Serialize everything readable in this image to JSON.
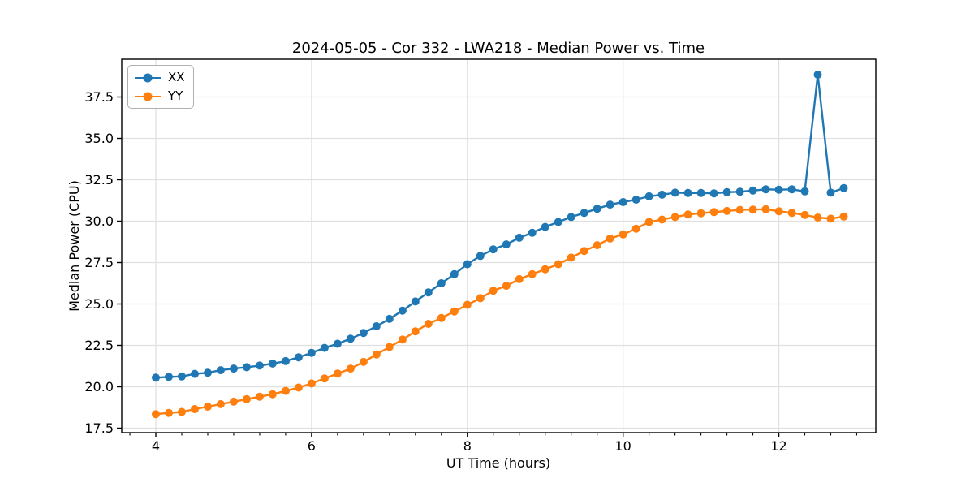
{
  "chart_data": {
    "type": "line",
    "title": "2024-05-05 - Cor 332 - LWA218 - Median Power vs. Time",
    "xlabel": "UT Time (hours)",
    "ylabel": "Median Power (CPU)",
    "xlim": [
      3.562,
      13.245
    ],
    "ylim": [
      17.23,
      39.78
    ],
    "x_ticks": [
      4,
      6,
      8,
      10,
      12
    ],
    "x_tick_labels": [
      "4",
      "6",
      "8",
      "10",
      "12"
    ],
    "x_minor_step": 0.33333,
    "y_ticks": [
      17.5,
      20.0,
      22.5,
      25.0,
      27.5,
      30.0,
      32.5,
      35.0,
      37.5
    ],
    "y_tick_labels": [
      "17.5",
      "20.0",
      "22.5",
      "25.0",
      "27.5",
      "30.0",
      "32.5",
      "35.0",
      "37.5"
    ],
    "grid": true,
    "legend_position": "upper left",
    "marker": "circle",
    "x": [
      4.0,
      4.167,
      4.333,
      4.5,
      4.667,
      4.833,
      5.0,
      5.167,
      5.333,
      5.5,
      5.667,
      5.833,
      6.0,
      6.167,
      6.333,
      6.5,
      6.667,
      6.833,
      7.0,
      7.167,
      7.333,
      7.5,
      7.667,
      7.833,
      8.0,
      8.167,
      8.333,
      8.5,
      8.667,
      8.833,
      9.0,
      9.167,
      9.333,
      9.5,
      9.667,
      9.833,
      10.0,
      10.167,
      10.333,
      10.5,
      10.667,
      10.833,
      11.0,
      11.167,
      11.333,
      11.5,
      11.667,
      11.833,
      12.0,
      12.167,
      12.333,
      12.5,
      12.667,
      12.833
    ],
    "series": [
      {
        "name": "XX",
        "color": "#1f77b4",
        "values": [
          20.55,
          20.6,
          20.62,
          20.78,
          20.85,
          21.0,
          21.1,
          21.18,
          21.28,
          21.4,
          21.55,
          21.78,
          22.05,
          22.35,
          22.6,
          22.9,
          23.25,
          23.65,
          24.1,
          24.6,
          25.15,
          25.7,
          26.25,
          26.8,
          27.4,
          27.9,
          28.3,
          28.6,
          29.0,
          29.3,
          29.65,
          29.95,
          30.25,
          30.5,
          30.75,
          31.0,
          31.15,
          31.3,
          31.5,
          31.6,
          31.72,
          31.7,
          31.7,
          31.68,
          31.75,
          31.78,
          31.85,
          31.92,
          31.9,
          31.92,
          31.8,
          38.85,
          31.72,
          32.0
        ]
      },
      {
        "name": "YY",
        "color": "#ff7f0e",
        "values": [
          18.35,
          18.42,
          18.48,
          18.65,
          18.8,
          18.95,
          19.1,
          19.25,
          19.4,
          19.55,
          19.75,
          19.95,
          20.2,
          20.5,
          20.8,
          21.1,
          21.5,
          21.95,
          22.4,
          22.85,
          23.35,
          23.8,
          24.15,
          24.55,
          24.95,
          25.35,
          25.8,
          26.1,
          26.5,
          26.8,
          27.1,
          27.4,
          27.8,
          28.2,
          28.55,
          28.95,
          29.2,
          29.55,
          29.95,
          30.1,
          30.25,
          30.4,
          30.48,
          30.55,
          30.62,
          30.68,
          30.7,
          30.72,
          30.6,
          30.5,
          30.38,
          30.22,
          30.15,
          30.28
        ]
      }
    ],
    "colors": {
      "grid": "#e0e0e0",
      "spine": "#000000",
      "tick": "#000000",
      "text": "#000000",
      "background": "#ffffff"
    }
  }
}
